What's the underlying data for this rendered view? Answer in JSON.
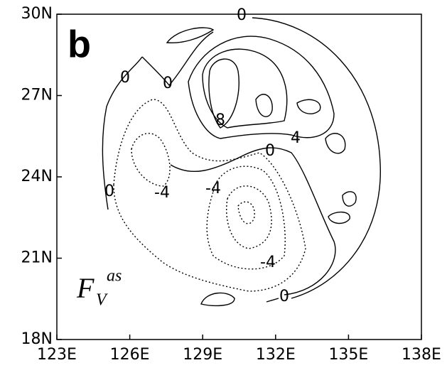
{
  "chart_data": {
    "type": "contour",
    "title": "b",
    "annotation": {
      "base": "F",
      "sub": "V",
      "sup": "as"
    },
    "contour_labels": [
      "0",
      "0",
      "0",
      "8",
      "4",
      "0",
      "0",
      "-4",
      "-4",
      "-4",
      "0"
    ],
    "xlim": [
      123,
      138
    ],
    "xticks": [
      {
        "value": 123,
        "label": "123E"
      },
      {
        "value": 126,
        "label": "126E"
      },
      {
        "value": 129,
        "label": "129E"
      },
      {
        "value": 132,
        "label": "132E"
      },
      {
        "value": 135,
        "label": "135E"
      },
      {
        "value": 138,
        "label": "138E"
      }
    ],
    "ylim": [
      18,
      30
    ],
    "yticks": [
      {
        "value": 18,
        "label": "18N"
      },
      {
        "value": 21,
        "label": "21N"
      },
      {
        "value": 24,
        "label": "24N"
      },
      {
        "value": 27,
        "label": "27N"
      },
      {
        "value": 30,
        "label": "30N"
      }
    ]
  }
}
